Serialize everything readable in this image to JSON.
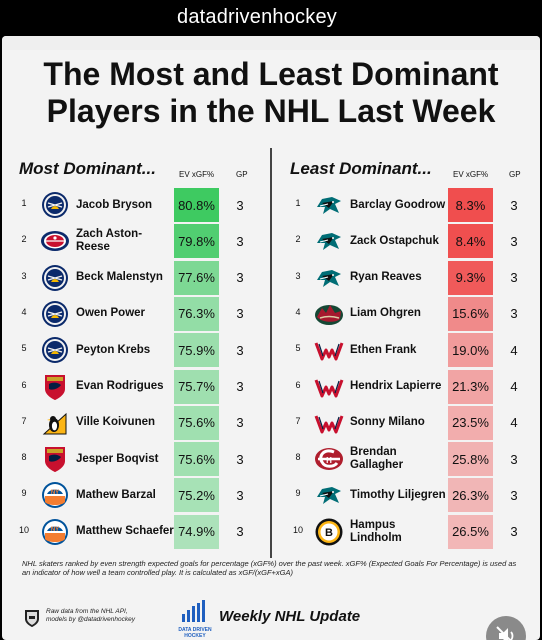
{
  "header": {
    "handle": "datadrivenhockey"
  },
  "title": {
    "line1": "The Most and Least Dominant",
    "line2": "Players in the NHL Last Week"
  },
  "most": {
    "heading": "Most Dominant...",
    "col_pct": "EV xGF%",
    "col_gp": "GP",
    "rows": [
      {
        "rank": "1",
        "name": "Jacob Bryson",
        "pct": "80.8%",
        "gp": "3",
        "team_icon": "sabres-logo-icon"
      },
      {
        "rank": "2",
        "name": "Zach Aston-Reese",
        "pct": "79.8%",
        "gp": "3",
        "team_icon": "blue-jackets-logo-icon"
      },
      {
        "rank": "3",
        "name": "Beck Malenstyn",
        "pct": "77.6%",
        "gp": "3",
        "team_icon": "sabres-logo-icon"
      },
      {
        "rank": "4",
        "name": "Owen Power",
        "pct": "76.3%",
        "gp": "3",
        "team_icon": "sabres-logo-icon"
      },
      {
        "rank": "5",
        "name": "Peyton Krebs",
        "pct": "75.9%",
        "gp": "3",
        "team_icon": "sabres-logo-icon"
      },
      {
        "rank": "6",
        "name": "Evan Rodrigues",
        "pct": "75.7%",
        "gp": "3",
        "team_icon": "panthers-logo-icon"
      },
      {
        "rank": "7",
        "name": "Ville Koivunen",
        "pct": "75.6%",
        "gp": "3",
        "team_icon": "penguins-logo-icon"
      },
      {
        "rank": "8",
        "name": "Jesper Boqvist",
        "pct": "75.6%",
        "gp": "3",
        "team_icon": "panthers-logo-icon"
      },
      {
        "rank": "9",
        "name": "Mathew Barzal",
        "pct": "75.2%",
        "gp": "3",
        "team_icon": "islanders-logo-icon"
      },
      {
        "rank": "10",
        "name": "Matthew Schaefer",
        "pct": "74.9%",
        "gp": "3",
        "team_icon": "islanders-logo-icon"
      }
    ],
    "shade": [
      0.95,
      0.85,
      0.62,
      0.5,
      0.46,
      0.44,
      0.43,
      0.43,
      0.4,
      0.37
    ]
  },
  "least": {
    "heading": "Least Dominant...",
    "col_pct": "EV xGF%",
    "col_gp": "GP",
    "rows": [
      {
        "rank": "1",
        "name": "Barclay Goodrow",
        "pct": "8.3%",
        "gp": "3",
        "team_icon": "sharks-logo-icon"
      },
      {
        "rank": "2",
        "name": "Zack Ostapchuk",
        "pct": "8.4%",
        "gp": "3",
        "team_icon": "sharks-logo-icon"
      },
      {
        "rank": "3",
        "name": "Ryan Reaves",
        "pct": "9.3%",
        "gp": "3",
        "team_icon": "sharks-logo-icon"
      },
      {
        "rank": "4",
        "name": "Liam Ohgren",
        "pct": "15.6%",
        "gp": "3",
        "team_icon": "wild-logo-icon"
      },
      {
        "rank": "5",
        "name": "Ethen Frank",
        "pct": "19.0%",
        "gp": "4",
        "team_icon": "capitals-logo-icon"
      },
      {
        "rank": "6",
        "name": "Hendrix Lapierre",
        "pct": "21.3%",
        "gp": "4",
        "team_icon": "capitals-logo-icon"
      },
      {
        "rank": "7",
        "name": "Sonny Milano",
        "pct": "23.5%",
        "gp": "4",
        "team_icon": "capitals-logo-icon"
      },
      {
        "rank": "8",
        "name": "Brendan Gallagher",
        "pct": "25.8%",
        "gp": "3",
        "team_icon": "canadiens-logo-icon"
      },
      {
        "rank": "9",
        "name": "Timothy Liljegren",
        "pct": "26.3%",
        "gp": "3",
        "team_icon": "sharks-logo-icon"
      },
      {
        "rank": "10",
        "name": "Hampus Lindholm",
        "pct": "26.5%",
        "gp": "3",
        "team_icon": "bruins-logo-icon"
      }
    ],
    "shade": [
      0.95,
      0.94,
      0.88,
      0.6,
      0.5,
      0.45,
      0.4,
      0.37,
      0.35,
      0.34
    ]
  },
  "colors": {
    "green": "#34c759",
    "red": "#ef4444"
  },
  "footnote": "NHL skaters ranked by even strength expected goals for percentage (xGF%) over the past week. xGF% (Expected Goals For Percentage) is used as an indicator of how well a team controlled play. It is calculated as xGF/(xGF+xGA)",
  "footer": {
    "source_line1": "Raw data from the NHL API,",
    "source_line2": "models by @datadrivenhockey",
    "brand_line1": "DATA DRIVEN",
    "brand_line2": "HOCKEY",
    "update_label": "Weekly NHL Update"
  },
  "overlay": {
    "mute_icon": "speaker-muted-icon",
    "arrow_icon": "arrow-right-icon"
  }
}
